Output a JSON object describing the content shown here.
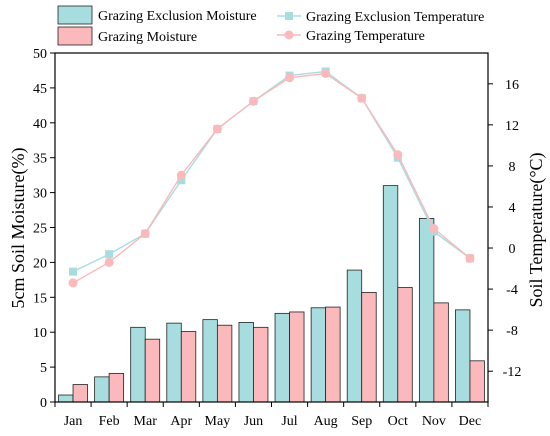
{
  "chart_data": {
    "type": "bar",
    "categories": [
      "Jan",
      "Feb",
      "Mar",
      "Apr",
      "May",
      "Jun",
      "Jul",
      "Aug",
      "Sep",
      "Oct",
      "Nov",
      "Dec"
    ],
    "ylabel_left": "5cm Soil Moisture(%)",
    "ylabel_right": "Soil Temperature(°C)",
    "ylim_left": [
      0,
      50
    ],
    "ylim_right": [
      -15,
      19
    ],
    "left_ticks": [
      "0",
      "5",
      "10",
      "15",
      "20",
      "25",
      "30",
      "35",
      "40",
      "45",
      "50"
    ],
    "right_ticks": [
      "-12",
      "-8",
      "-4",
      "0",
      "4",
      "8",
      "12",
      "16"
    ],
    "bar_series": [
      {
        "name": "Grazing Exclusion Moisture",
        "color": "#a8dde0",
        "values": [
          1.0,
          3.6,
          10.7,
          11.3,
          11.8,
          11.4,
          12.7,
          13.5,
          18.9,
          31.0,
          26.3,
          13.2
        ]
      },
      {
        "name": "Grazing  Moisture",
        "color": "#fbb9bb",
        "values": [
          2.5,
          4.1,
          9.0,
          10.1,
          11.0,
          10.7,
          12.9,
          13.6,
          15.7,
          16.4,
          14.2,
          5.9
        ]
      }
    ],
    "line_series": [
      {
        "name": "Grazing Exclusion Temperature",
        "color": "#a8dde0",
        "marker": "square",
        "values": [
          -2.3,
          -0.6,
          1.4,
          6.6,
          11.6,
          14.3,
          16.8,
          17.2,
          14.6,
          8.8,
          1.6,
          -1.0
        ]
      },
      {
        "name": "Grazing Temperature",
        "color": "#fbb9bb",
        "marker": "circle",
        "values": [
          -3.4,
          -1.4,
          1.4,
          7.1,
          11.6,
          14.3,
          16.6,
          17.0,
          14.6,
          9.1,
          1.9,
          -1.0
        ]
      }
    ],
    "legend_position": "top"
  }
}
